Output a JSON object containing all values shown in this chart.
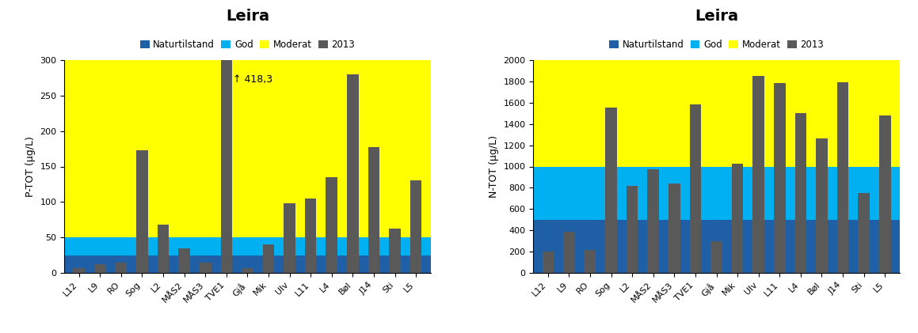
{
  "categories": [
    "L12",
    "L9",
    "RO",
    "Sog",
    "L2",
    "MÅS2",
    "MÅS3",
    "TVE1",
    "Gjå",
    "Mik",
    "Ulv",
    "L11",
    "L4",
    "Bøl",
    "J14",
    "Sti",
    "L5"
  ],
  "p_values": [
    7,
    12,
    15,
    173,
    68,
    35,
    15,
    300,
    7,
    40,
    98,
    105,
    135,
    280,
    177,
    63,
    130
  ],
  "p_actual_max": 418.3,
  "p_clipped_idx": 7,
  "p_ylim": [
    0,
    300
  ],
  "p_yticks": [
    0,
    50,
    100,
    150,
    200,
    250,
    300
  ],
  "p_naturtilstand": 25,
  "p_god": 50,
  "p_ylabel": "P-TOT (µg/L)",
  "p_title": "Leira",
  "n_values": [
    200,
    385,
    220,
    1550,
    815,
    975,
    840,
    1580,
    295,
    1025,
    1850,
    1780,
    1500,
    1260,
    1790,
    750,
    1480
  ],
  "n_ylim": [
    0,
    2000
  ],
  "n_yticks": [
    0,
    200,
    400,
    600,
    800,
    1000,
    1200,
    1400,
    1600,
    1800,
    2000
  ],
  "n_naturtilstand": 500,
  "n_god": 1000,
  "n_ylabel": "N-TOT (µg/L)",
  "n_title": "Leira",
  "color_naturtilstand": "#1F5FA6",
  "color_god": "#00B0F0",
  "color_moderat": "#FFFF00",
  "color_bar": "#595959",
  "legend_labels": [
    "Naturtilstand",
    "God",
    "Moderat",
    "2013"
  ],
  "annotation_text": "↑ 418,3",
  "background_color": "#FFFFFF",
  "title_fontsize": 14,
  "label_fontsize": 9,
  "tick_fontsize": 8,
  "legend_fontsize": 8.5,
  "bar_width": 0.55
}
